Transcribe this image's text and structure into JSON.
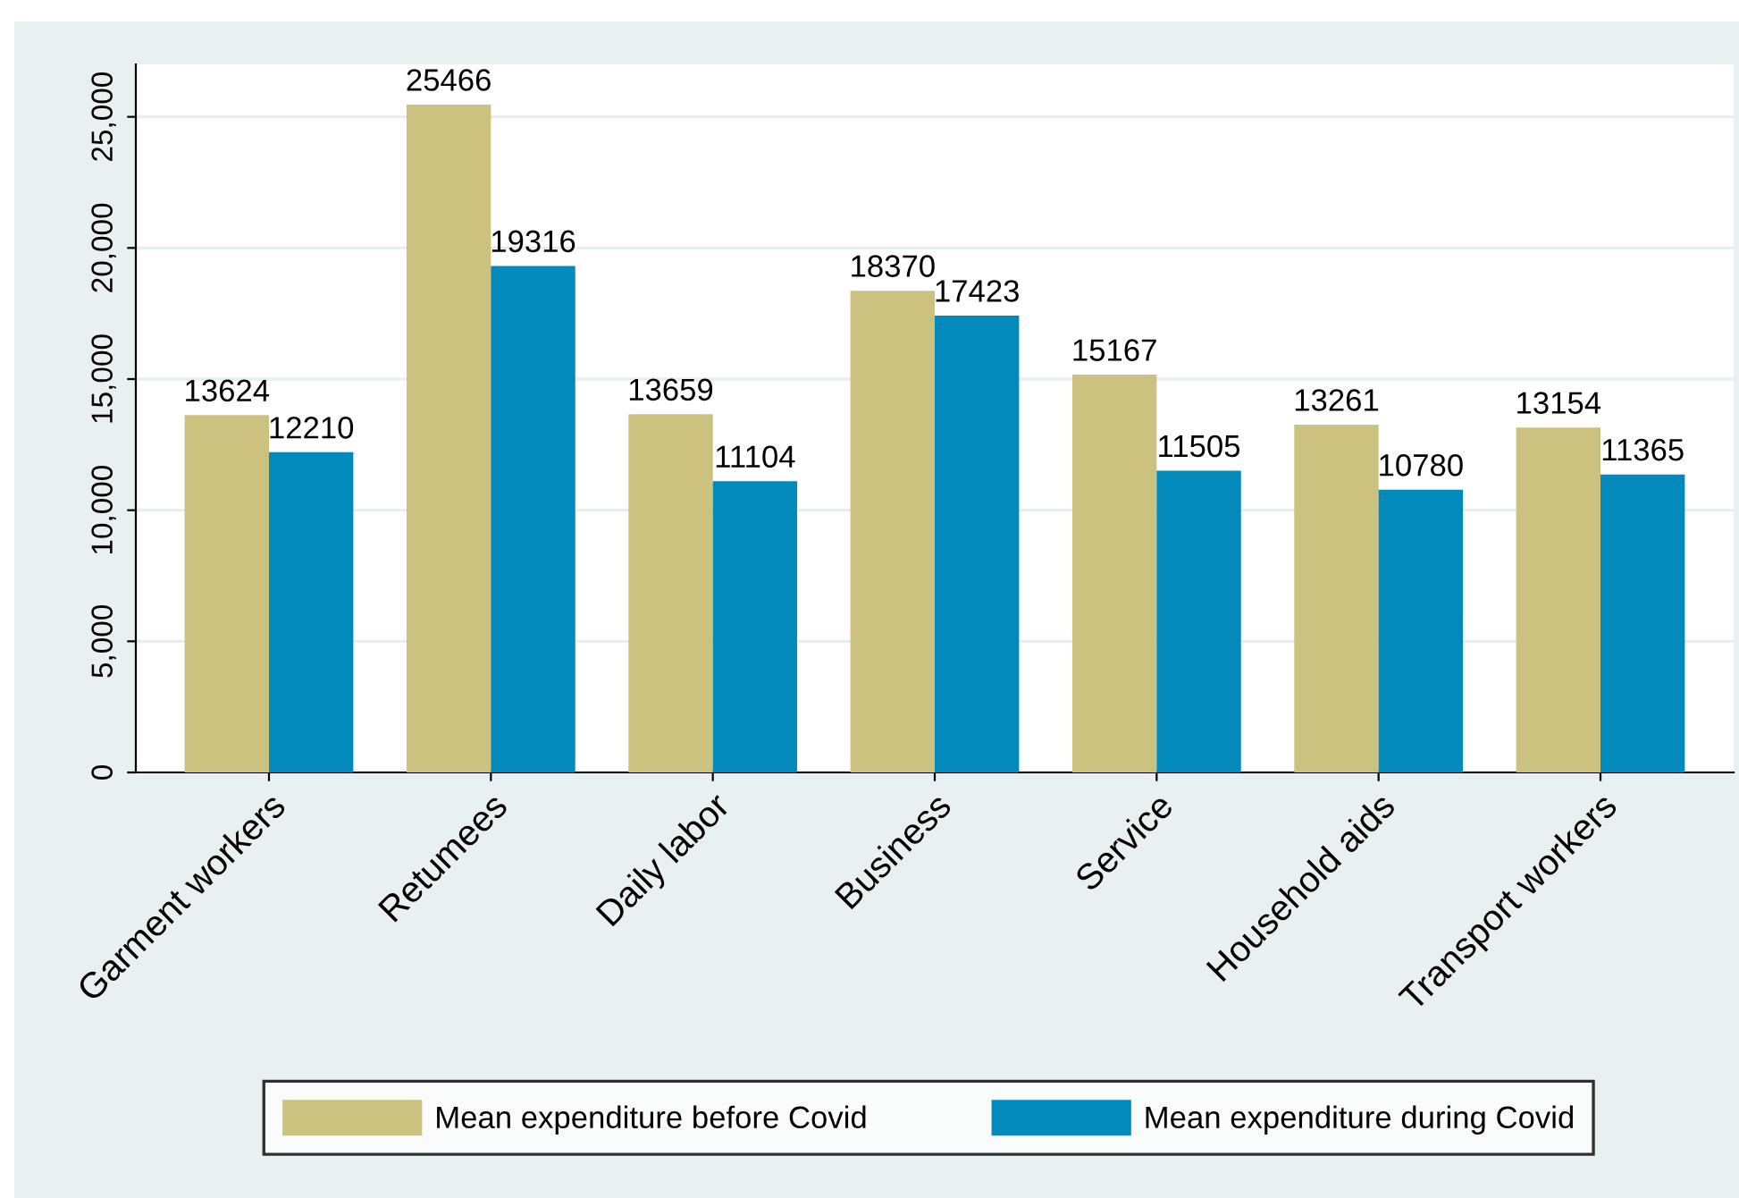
{
  "chart_data": {
    "type": "bar",
    "categories": [
      "Garment workers",
      "Retumees",
      "Daily labor",
      "Business",
      "Service",
      "Household aids",
      "Transport workers"
    ],
    "series": [
      {
        "name": "Mean expenditure before Covid",
        "color": "#cbc280",
        "values": [
          13624,
          25466,
          13659,
          18370,
          15167,
          13261,
          13154
        ]
      },
      {
        "name": "Mean expenditure during Covid",
        "color": "#028abc",
        "values": [
          12210,
          19316,
          11104,
          17423,
          11505,
          10780,
          11365
        ]
      }
    ],
    "ylim": [
      0,
      27000
    ],
    "yticks": [
      0,
      {
        "value": 5000,
        "label": "5,000"
      },
      {
        "value": 10000,
        "label": "10,000"
      },
      {
        "value": 15000,
        "label": "15,000"
      },
      {
        "value": 20000,
        "label": "20,000"
      },
      {
        "value": 25000,
        "label": "25,000"
      }
    ],
    "grid": "y",
    "legend": "bottom",
    "data_labels": true
  }
}
